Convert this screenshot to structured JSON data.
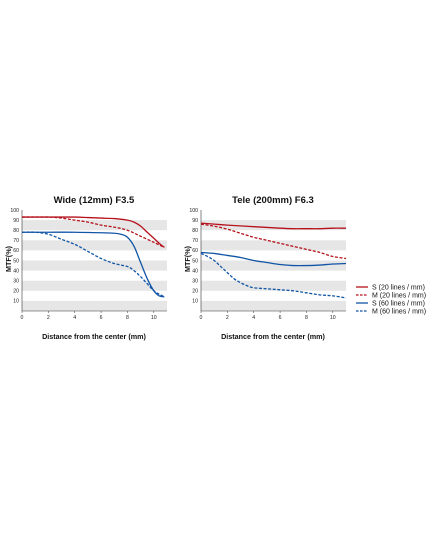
{
  "chart_data": [
    {
      "type": "line",
      "title": "Wide (12mm) F3.5",
      "xlabel": "Distance from the center (mm)",
      "ylabel": "MTF(%)",
      "xlim": [
        0,
        11
      ],
      "ylim": [
        0,
        100
      ],
      "xticks": [
        "0",
        "2",
        "4",
        "6",
        "8",
        "10"
      ],
      "yticks": [
        "10",
        "20",
        "30",
        "40",
        "50",
        "60",
        "70",
        "80",
        "90",
        "100"
      ],
      "grid": "alternating horizontal bands",
      "series": [
        {
          "name": "S (20 lines / mm)",
          "color": "#b5121b",
          "dash": false,
          "x": [
            0,
            2,
            4,
            5,
            6,
            7,
            8,
            8.5,
            9,
            9.5,
            10,
            10.5,
            10.8
          ],
          "y": [
            93,
            93,
            93,
            92.5,
            92,
            91.5,
            90,
            88,
            84,
            78,
            72,
            66,
            63
          ]
        },
        {
          "name": "M (20 lines / mm)",
          "color": "#b5121b",
          "dash": true,
          "x": [
            0,
            2,
            3,
            4,
            5,
            6,
            7,
            8,
            9,
            10,
            10.8
          ],
          "y": [
            93,
            93,
            92,
            90,
            88,
            85,
            83,
            80,
            74,
            68,
            63
          ]
        },
        {
          "name": "S (60 lines / mm)",
          "color": "#1155a6",
          "dash": false,
          "x": [
            0,
            2,
            4,
            6,
            7,
            7.5,
            8,
            8.5,
            9,
            9.5,
            10,
            10.4,
            10.8
          ],
          "y": [
            78,
            78,
            78,
            77.5,
            77,
            76,
            73,
            64,
            48,
            32,
            20,
            15,
            14
          ]
        },
        {
          "name": "M (60 lines / mm)",
          "color": "#1155a6",
          "dash": true,
          "x": [
            0,
            1,
            2,
            3,
            4,
            5,
            6,
            7,
            8,
            8.5,
            9,
            9.5,
            10,
            10.5,
            10.8
          ],
          "y": [
            78,
            78,
            76,
            71,
            66,
            59,
            52,
            47,
            44,
            40,
            34,
            27,
            20,
            16,
            14
          ]
        }
      ]
    },
    {
      "type": "line",
      "title": "Tele (200mm) F6.3",
      "xlabel": "Distance from the center (mm)",
      "ylabel": "MTF(%)",
      "xlim": [
        0,
        11
      ],
      "ylim": [
        0,
        100
      ],
      "xticks": [
        "0",
        "2",
        "4",
        "6",
        "8",
        "10"
      ],
      "yticks": [
        "10",
        "20",
        "30",
        "40",
        "50",
        "60",
        "70",
        "80",
        "90",
        "100"
      ],
      "grid": "alternating horizontal bands",
      "series": [
        {
          "name": "S (20 lines / mm)",
          "color": "#b5121b",
          "dash": false,
          "x": [
            0,
            1,
            2,
            4,
            6,
            7,
            8,
            9,
            10,
            11
          ],
          "y": [
            87,
            86,
            85,
            83.5,
            82,
            81.5,
            81.5,
            81.5,
            82,
            82
          ]
        },
        {
          "name": "M (20 lines / mm)",
          "color": "#b5121b",
          "dash": true,
          "x": [
            0,
            1,
            2,
            3,
            4,
            5,
            6,
            7,
            8,
            9,
            10,
            11
          ],
          "y": [
            86,
            84,
            81,
            77,
            73,
            70,
            67,
            64,
            61,
            58,
            54,
            52
          ]
        },
        {
          "name": "S (60 lines / mm)",
          "color": "#1155a6",
          "dash": false,
          "x": [
            0,
            1,
            2,
            3,
            4,
            5,
            6,
            7,
            8,
            9,
            10,
            11
          ],
          "y": [
            58,
            57,
            55,
            53,
            50,
            48,
            46,
            45,
            45,
            45.5,
            46.5,
            47
          ]
        },
        {
          "name": "M (60 lines / mm)",
          "color": "#1155a6",
          "dash": true,
          "x": [
            0,
            0.5,
            1,
            1.5,
            2,
            2.5,
            3,
            3.5,
            4,
            5,
            6,
            7,
            8,
            9,
            10,
            11
          ],
          "y": [
            57,
            54,
            50,
            44,
            38,
            32,
            28,
            25,
            23,
            22,
            21,
            20,
            18,
            16,
            15,
            13
          ]
        }
      ]
    }
  ],
  "legend": {
    "placement": "right",
    "items": [
      {
        "label": "S (20 lines / mm)",
        "color": "#b5121b",
        "dash": false
      },
      {
        "label": "M (20 lines / mm)",
        "color": "#b5121b",
        "dash": true
      },
      {
        "label": "S (60 lines / mm)",
        "color": "#1155a6",
        "dash": false
      },
      {
        "label": "M (60 lines / mm)",
        "color": "#1155a6",
        "dash": true
      }
    ]
  },
  "colors": {
    "band": "#e6e6e6",
    "axis": "#333333"
  }
}
